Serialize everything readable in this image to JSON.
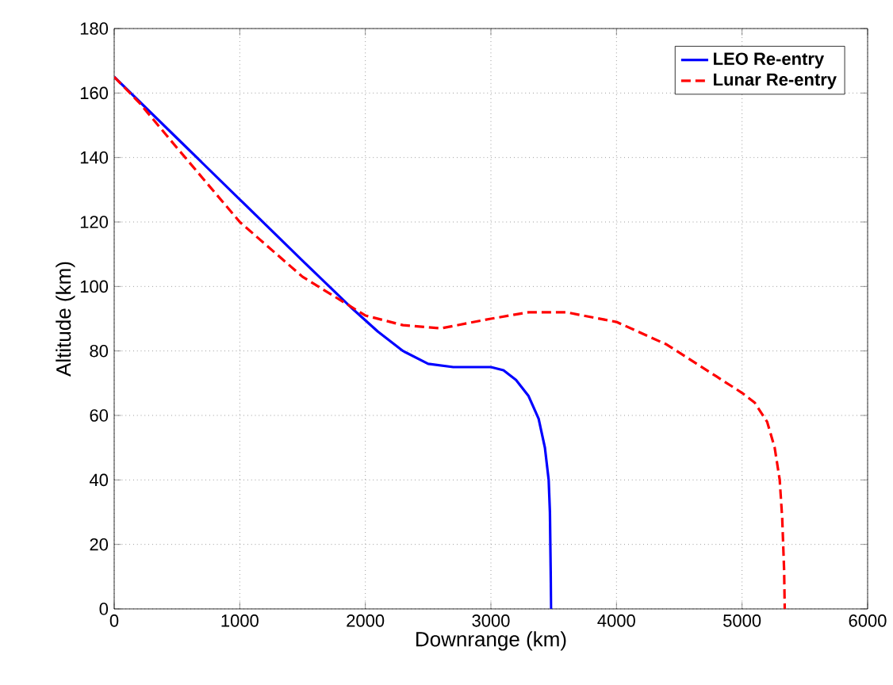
{
  "chart_data": {
    "type": "line",
    "xlabel": "Downrange (km)",
    "ylabel": "Altitude (km)",
    "xlim": [
      0,
      6000
    ],
    "ylim": [
      0,
      180
    ],
    "xticks": [
      0,
      1000,
      2000,
      3000,
      4000,
      5000,
      6000
    ],
    "yticks": [
      0,
      20,
      40,
      60,
      80,
      100,
      120,
      140,
      160,
      180
    ],
    "grid": true,
    "legend": "top right",
    "series": [
      {
        "name": "LEO Re-entry",
        "color": "#0000ff",
        "line_style": "solid",
        "x": [
          0,
          500,
          1000,
          1500,
          1900,
          2100,
          2300,
          2500,
          2700,
          2900,
          3000,
          3100,
          3200,
          3300,
          3380,
          3430,
          3460,
          3470,
          3475,
          3480
        ],
        "values": [
          165,
          146,
          127,
          108,
          93,
          86,
          80,
          76,
          75,
          75,
          75,
          74,
          71,
          66,
          59,
          50,
          40,
          30,
          15,
          0
        ]
      },
      {
        "name": "Lunar Re-entry",
        "color": "#ff0000",
        "line_style": "dashed",
        "x": [
          0,
          200,
          500,
          1000,
          1500,
          2000,
          2300,
          2600,
          3000,
          3300,
          3600,
          4000,
          4400,
          4800,
          5000,
          5100,
          5200,
          5260,
          5300,
          5320,
          5335,
          5340
        ],
        "values": [
          165,
          157,
          143,
          120,
          103,
          91,
          88,
          87,
          90,
          92,
          92,
          89,
          82,
          72,
          67,
          64,
          58,
          50,
          40,
          28,
          12,
          0
        ]
      }
    ]
  }
}
